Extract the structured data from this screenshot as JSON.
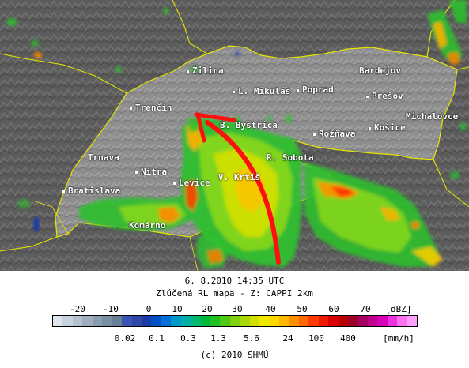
{
  "header": {
    "datetime": "6. 8.2010 14:35 UTC",
    "product": "Zlúčená RL mapa - Z: CAPPI 2km",
    "copyright": "(c) 2010 SHMÚ"
  },
  "cities": [
    {
      "name": "Žilina",
      "dot": true
    },
    {
      "name": "Bardejov",
      "dot": false
    },
    {
      "name": "L. Mikuláš",
      "dot": true
    },
    {
      "name": "Poprad",
      "dot": true
    },
    {
      "name": "Prešov",
      "dot": true
    },
    {
      "name": "Trenčín",
      "dot": true
    },
    {
      "name": "Michalovce",
      "dot": false
    },
    {
      "name": "B. Bystrica",
      "dot": false
    },
    {
      "name": "Košice",
      "dot": true
    },
    {
      "name": "Rožňava",
      "dot": true
    },
    {
      "name": "Trnava",
      "dot": false
    },
    {
      "name": "R. Sobota",
      "dot": false
    },
    {
      "name": "Nitra",
      "dot": true
    },
    {
      "name": "V. Krtíš",
      "dot": false
    },
    {
      "name": "Levice",
      "dot": true
    },
    {
      "name": "Bratislava",
      "dot": true
    },
    {
      "name": "Komárno",
      "dot": false
    }
  ],
  "legend": {
    "dbz_unit": "[dBZ]",
    "mmh_unit": "[mm/h]",
    "dbz_ticks": [
      "-20",
      "-10",
      "0",
      "10",
      "20",
      "30",
      "40",
      "50",
      "60",
      "70"
    ],
    "mmh_ticks": [
      "0.02",
      "0.1",
      "0.3",
      "1.3",
      "5.6",
      "24",
      "100",
      "400"
    ],
    "colors": [
      "#dfe6ee",
      "#c9d3de",
      "#b3c0ce",
      "#9eaebf",
      "#8a9db0",
      "#778ea3",
      "#667f96",
      "#3a55b5",
      "#2f47a8",
      "#1a3aa8",
      "#0050c8",
      "#0070d8",
      "#0098c8",
      "#00b0a8",
      "#00b870",
      "#00b838",
      "#20c020",
      "#50c818",
      "#80d010",
      "#a8d808",
      "#d0e000",
      "#f0e800",
      "#ffd800",
      "#ffb800",
      "#ff9000",
      "#ff6800",
      "#ff3c00",
      "#f01800",
      "#d80000",
      "#b80000",
      "#9c0028",
      "#a80060",
      "#c0008c",
      "#d800b8",
      "#ee30e0",
      "#ff70f0",
      "#ffa0ff"
    ]
  },
  "colors": {
    "land": "#8c8c8c",
    "outside": "#5e5e5e",
    "border": "#e6e600",
    "track": "#ff1010"
  }
}
